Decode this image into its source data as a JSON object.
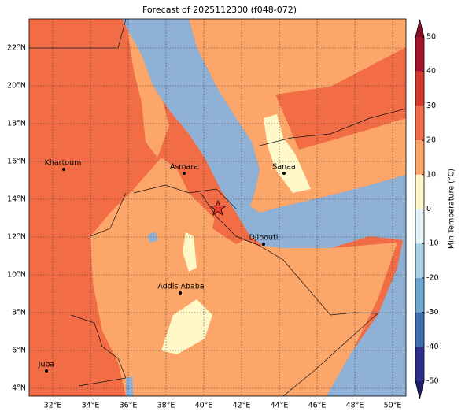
{
  "header": {
    "title": "Forecast of 2025112300 (f048-072)"
  },
  "map": {
    "lat_labels": [
      "22°N",
      "20°N",
      "18°N",
      "16°N",
      "14°N",
      "12°N",
      "10°N",
      "8°N",
      "6°N",
      "4°N"
    ],
    "lon_labels": [
      "32°E",
      "34°E",
      "36°E",
      "38°E",
      "40°E",
      "42°E",
      "44°E",
      "46°E",
      "48°E",
      "50°E"
    ],
    "cities": [
      "Khartoum",
      "Asmara",
      "Sanaa",
      "Djibouti",
      "Addis Ababa",
      "Juba"
    ]
  },
  "colorbar": {
    "label": "Min Temperature (°C)",
    "ticks": [
      -50,
      -40,
      -30,
      -20,
      -10,
      0,
      10,
      20,
      30,
      40,
      50
    ],
    "colors": [
      "#2c2f8a",
      "#3f6fb0",
      "#6fa6cf",
      "#a9d2e6",
      "#e6f4f7",
      "#fff8c8",
      "#fca66a",
      "#f26c45",
      "#d63a2c",
      "#a3122a"
    ],
    "under_color": "#1f1f70",
    "over_color": "#8a0b25"
  }
}
